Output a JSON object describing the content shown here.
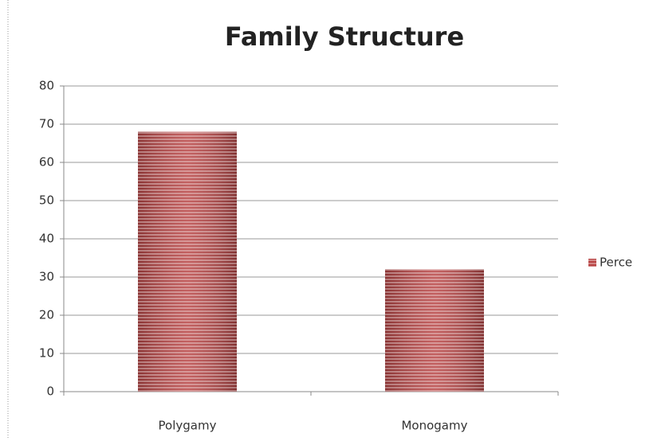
{
  "chart_data": {
    "type": "bar",
    "title": "Family Structure",
    "categories": [
      "Polygamy",
      "Monogamy"
    ],
    "series": [
      {
        "name": "Perce",
        "color": "#b84444",
        "values": [
          68,
          32
        ]
      }
    ],
    "ylim": [
      0,
      80
    ],
    "yticks": [
      0,
      10,
      20,
      30,
      40,
      50,
      60,
      70,
      80
    ],
    "grid": true,
    "legend": "right"
  }
}
